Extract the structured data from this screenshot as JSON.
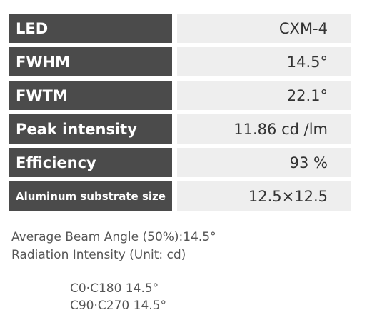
{
  "specs": [
    {
      "label": "LED",
      "value": "CXM-4"
    },
    {
      "label": "FWHM",
      "value": "14.5°"
    },
    {
      "label": "FWTM",
      "value": "22.1°"
    },
    {
      "label": "Peak intensity",
      "value": "11.86 cd /lm"
    },
    {
      "label": "Efficiency",
      "value": "93 %"
    },
    {
      "label": "Aluminum substrate size",
      "value": "12.5×12.5"
    }
  ],
  "captions": {
    "beam_angle": "Average Beam Angle (50%):14.5°",
    "radiation": "Radiation Intensity (Unit: cd)"
  },
  "legend": [
    {
      "label": "C0·C180 14.5°",
      "color": "#e0505a"
    },
    {
      "label": "C90·C270 14.5°",
      "color": "#4a78b8"
    }
  ]
}
